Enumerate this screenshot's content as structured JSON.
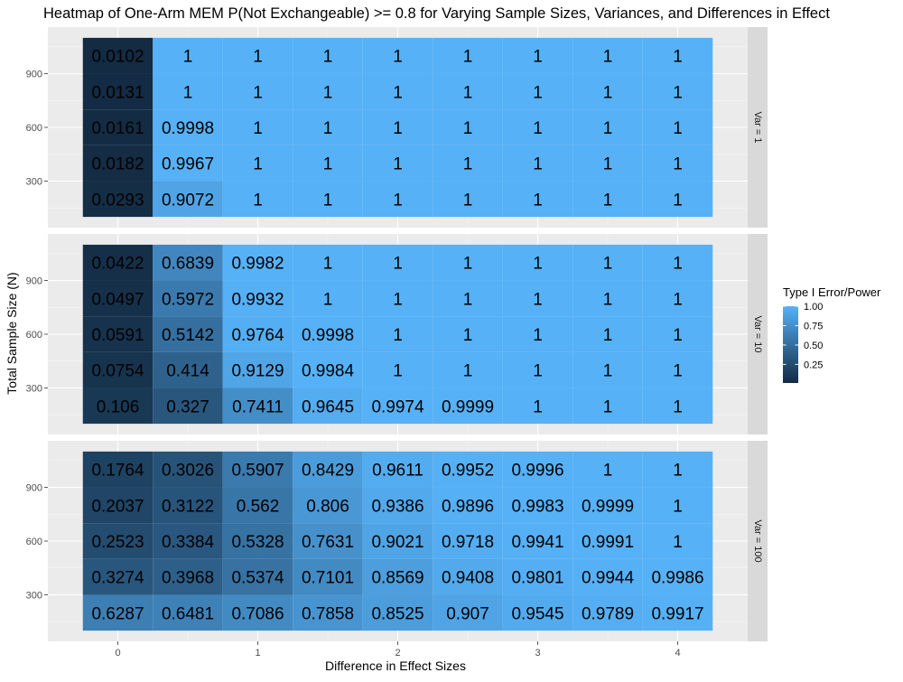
{
  "chart_data": {
    "type": "heatmap",
    "title": "Heatmap of One-Arm MEM P(Not Exchangeable) >= 0.8 for Varying Sample Sizes, Variances, and Differences in Effect",
    "xlabel": "Difference in Effect Sizes",
    "ylabel": "Total Sample Size (N)",
    "x_values": [
      0,
      0.5,
      1,
      1.5,
      2,
      2.5,
      3,
      3.5,
      4
    ],
    "x_ticks": [
      0,
      1,
      2,
      3,
      4
    ],
    "y_values": [
      200,
      400,
      600,
      800,
      1000
    ],
    "y_ticks": [
      300,
      600,
      900
    ],
    "xlim": [
      -0.5,
      4.5
    ],
    "ylim": [
      40,
      1160
    ],
    "legend": {
      "title": "Type I Error/Power",
      "ticks": [
        0.25,
        0.5,
        0.75,
        1.0
      ],
      "tick_labels": [
        "0.25",
        "0.50",
        "0.75",
        "1.00"
      ],
      "low_color": "#132B43",
      "high_color": "#56B1F7",
      "range": [
        0.0102,
        1
      ],
      "placement": "right"
    },
    "panels": [
      {
        "strip": "Var = 1",
        "rows": [
          {
            "y": 1000,
            "values": [
              "0.0102",
              "1",
              "1",
              "1",
              "1",
              "1",
              "1",
              "1",
              "1"
            ]
          },
          {
            "y": 800,
            "values": [
              "0.0131",
              "1",
              "1",
              "1",
              "1",
              "1",
              "1",
              "1",
              "1"
            ]
          },
          {
            "y": 600,
            "values": [
              "0.0161",
              "0.9998",
              "1",
              "1",
              "1",
              "1",
              "1",
              "1",
              "1"
            ]
          },
          {
            "y": 400,
            "values": [
              "0.0182",
              "0.9967",
              "1",
              "1",
              "1",
              "1",
              "1",
              "1",
              "1"
            ]
          },
          {
            "y": 200,
            "values": [
              "0.0293",
              "0.9072",
              "1",
              "1",
              "1",
              "1",
              "1",
              "1",
              "1"
            ]
          }
        ]
      },
      {
        "strip": "Var = 10",
        "rows": [
          {
            "y": 1000,
            "values": [
              "0.0422",
              "0.6839",
              "0.9982",
              "1",
              "1",
              "1",
              "1",
              "1",
              "1"
            ]
          },
          {
            "y": 800,
            "values": [
              "0.0497",
              "0.5972",
              "0.9932",
              "1",
              "1",
              "1",
              "1",
              "1",
              "1"
            ]
          },
          {
            "y": 600,
            "values": [
              "0.0591",
              "0.5142",
              "0.9764",
              "0.9998",
              "1",
              "1",
              "1",
              "1",
              "1"
            ]
          },
          {
            "y": 400,
            "values": [
              "0.0754",
              "0.414",
              "0.9129",
              "0.9984",
              "1",
              "1",
              "1",
              "1",
              "1"
            ]
          },
          {
            "y": 200,
            "values": [
              "0.106",
              "0.327",
              "0.7411",
              "0.9645",
              "0.9974",
              "0.9999",
              "1",
              "1",
              "1"
            ]
          }
        ]
      },
      {
        "strip": "Var = 100",
        "rows": [
          {
            "y": 1000,
            "values": [
              "0.1764",
              "0.3026",
              "0.5907",
              "0.8429",
              "0.9611",
              "0.9952",
              "0.9996",
              "1",
              "1"
            ]
          },
          {
            "y": 800,
            "values": [
              "0.2037",
              "0.3122",
              "0.562",
              "0.806",
              "0.9386",
              "0.9896",
              "0.9983",
              "0.9999",
              "1"
            ]
          },
          {
            "y": 600,
            "values": [
              "0.2523",
              "0.3384",
              "0.5328",
              "0.7631",
              "0.9021",
              "0.9718",
              "0.9941",
              "0.9991",
              "1"
            ]
          },
          {
            "y": 400,
            "values": [
              "0.3274",
              "0.3968",
              "0.5374",
              "0.7101",
              "0.8569",
              "0.9408",
              "0.9801",
              "0.9944",
              "0.9986"
            ]
          },
          {
            "y": 200,
            "values": [
              "0.6287",
              "0.6481",
              "0.7086",
              "0.7858",
              "0.8525",
              "0.907",
              "0.9545",
              "0.9789",
              "0.9917"
            ]
          }
        ]
      }
    ]
  }
}
